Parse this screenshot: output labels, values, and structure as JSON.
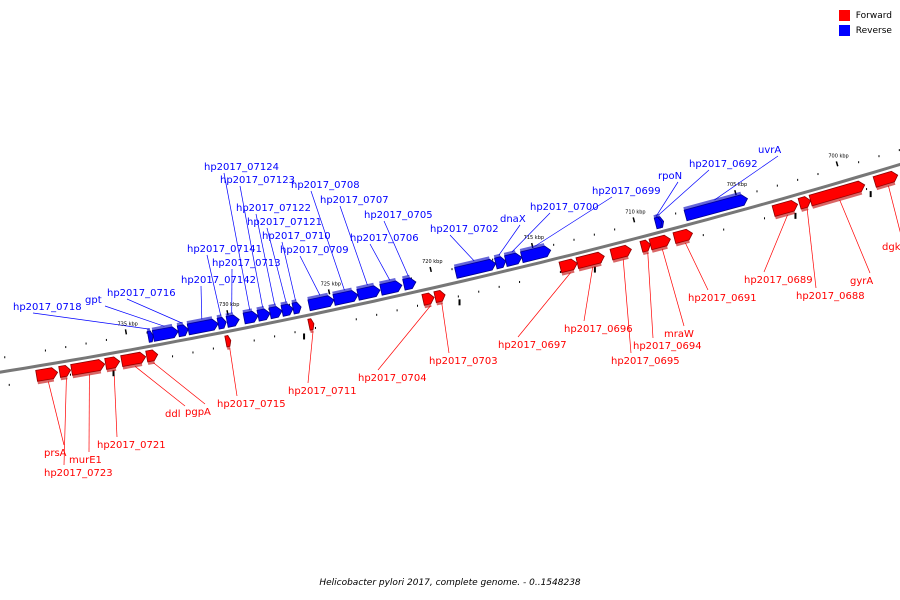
{
  "caption": "Helicobacter pylori 2017, complete genome. - 0..1548238",
  "legend": [
    {
      "label": "Forward",
      "color": "#ff0000"
    },
    {
      "label": "Reverse",
      "color": "#0000ff"
    }
  ],
  "strand_colors": {
    "forward": "#ff0000",
    "reverse": "#0000ff",
    "backbone": "#777777"
  },
  "ticks": [
    {
      "kbp": 700,
      "label": "700 kbp"
    },
    {
      "kbp": 705,
      "label": "705 kbp"
    },
    {
      "kbp": 710,
      "label": "710 kbp"
    },
    {
      "kbp": 715,
      "label": "715 kbp"
    },
    {
      "kbp": 720,
      "label": "720 kbp"
    },
    {
      "kbp": 725,
      "label": "725 kbp"
    },
    {
      "kbp": 730,
      "label": "730 kbp"
    },
    {
      "kbp": 735,
      "label": "735 kbp"
    }
  ],
  "genes": [
    {
      "name": "dgkA",
      "strand": "forward"
    },
    {
      "name": "gyrA",
      "strand": "forward"
    },
    {
      "name": "hp2017_0688",
      "strand": "forward"
    },
    {
      "name": "hp2017_0689",
      "strand": "forward"
    },
    {
      "name": "uvrA",
      "strand": "reverse"
    },
    {
      "name": "hp2017_0691",
      "strand": "forward"
    },
    {
      "name": "hp2017_0692",
      "strand": "reverse"
    },
    {
      "name": "mraW",
      "strand": "forward"
    },
    {
      "name": "hp2017_0694",
      "strand": "forward"
    },
    {
      "name": "hp2017_0695",
      "strand": "forward"
    },
    {
      "name": "rpoN",
      "strand": "reverse"
    },
    {
      "name": "hp2017_0696",
      "strand": "forward"
    },
    {
      "name": "hp2017_0697",
      "strand": "forward"
    },
    {
      "name": "hp2017_0699",
      "strand": "reverse"
    },
    {
      "name": "hp2017_0700",
      "strand": "reverse"
    },
    {
      "name": "dnaX",
      "strand": "reverse"
    },
    {
      "name": "hp2017_0702",
      "strand": "reverse"
    },
    {
      "name": "hp2017_0703",
      "strand": "forward"
    },
    {
      "name": "hp2017_0704",
      "strand": "forward"
    },
    {
      "name": "hp2017_0705",
      "strand": "reverse"
    },
    {
      "name": "hp2017_0706",
      "strand": "reverse"
    },
    {
      "name": "hp2017_0707",
      "strand": "reverse"
    },
    {
      "name": "hp2017_0708",
      "strand": "reverse"
    },
    {
      "name": "hp2017_0709",
      "strand": "reverse"
    },
    {
      "name": "hp2017_0711",
      "strand": "forward"
    },
    {
      "name": "hp2017_0710",
      "strand": "reverse"
    },
    {
      "name": "hp2017_07121",
      "strand": "reverse"
    },
    {
      "name": "hp2017_07122",
      "strand": "reverse"
    },
    {
      "name": "hp2017_07123",
      "strand": "reverse"
    },
    {
      "name": "hp2017_07124",
      "strand": "reverse"
    },
    {
      "name": "hp2017_0713",
      "strand": "reverse"
    },
    {
      "name": "hp2017_07141",
      "strand": "reverse"
    },
    {
      "name": "hp2017_07142",
      "strand": "reverse"
    },
    {
      "name": "hp2017_0715",
      "strand": "forward"
    },
    {
      "name": "hp2017_0716",
      "strand": "reverse"
    },
    {
      "name": "gpt",
      "strand": "reverse"
    },
    {
      "name": "hp2017_0718",
      "strand": "reverse"
    },
    {
      "name": "pgpA",
      "strand": "forward"
    },
    {
      "name": "ddl",
      "strand": "forward"
    },
    {
      "name": "hp2017_0721",
      "strand": "forward"
    },
    {
      "name": "murE1",
      "strand": "forward"
    },
    {
      "name": "hp2017_0723",
      "strand": "forward"
    },
    {
      "name": "prsA",
      "strand": "forward"
    }
  ]
}
